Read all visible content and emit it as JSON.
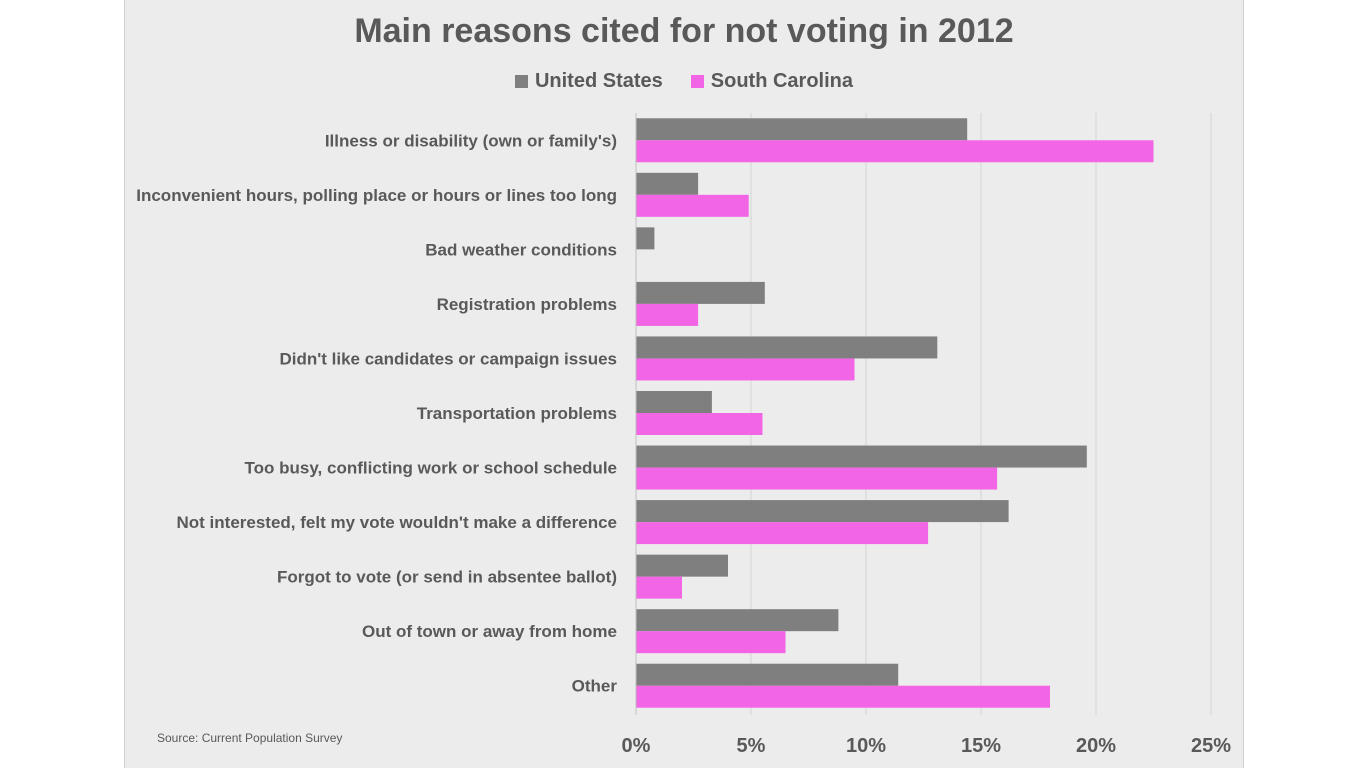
{
  "source": "Source: Current Population Survey",
  "chart_data": {
    "type": "bar",
    "orientation": "horizontal",
    "title": "Main reasons cited for not voting in 2012",
    "xlabel": "",
    "ylabel": "",
    "xlim": [
      0,
      25
    ],
    "ticks": [
      "0%",
      "5%",
      "10%",
      "15%",
      "20%",
      "25%"
    ],
    "tick_values": [
      0,
      5,
      10,
      15,
      20,
      25
    ],
    "grid": true,
    "legend_position": "top-center",
    "categories": [
      "Illness or disability (own or family's)",
      "Inconvenient hours, polling place or hours or lines too long",
      "Bad weather conditions",
      "Registration problems",
      "Didn't like candidates or campaign issues",
      "Transportation problems",
      "Too busy, conflicting work or school schedule",
      "Not interested, felt my vote wouldn't make a difference",
      "Forgot to vote (or send in absentee ballot)",
      "Out of town or away from home",
      "Other"
    ],
    "series": [
      {
        "name": "United States",
        "color": "#7f7f7f",
        "values": [
          14.4,
          2.7,
          0.8,
          5.6,
          13.1,
          3.3,
          19.6,
          16.2,
          4.0,
          8.8,
          11.4
        ]
      },
      {
        "name": "South Carolina",
        "color": "#f266e6",
        "values": [
          22.5,
          4.9,
          0.0,
          2.7,
          9.5,
          5.5,
          15.7,
          12.7,
          2.0,
          6.5,
          18.0
        ]
      }
    ]
  }
}
